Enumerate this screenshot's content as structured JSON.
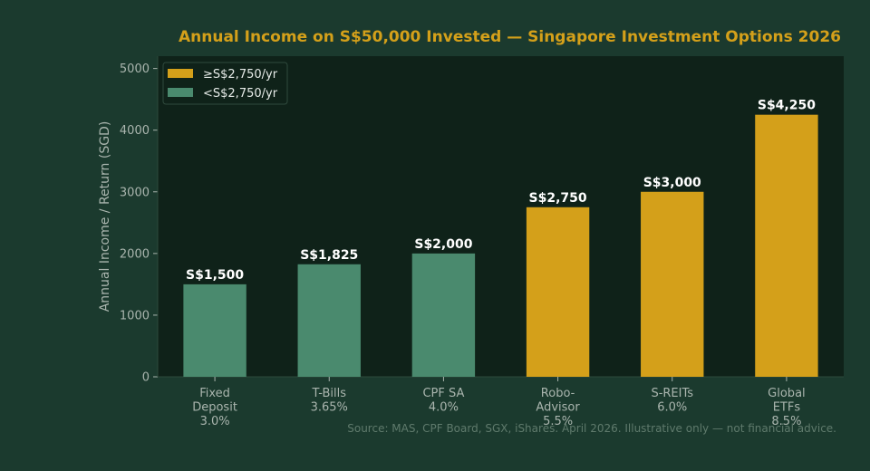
{
  "chart_data": {
    "type": "bar",
    "title": "Annual Income on S$50,000 Invested — Singapore Investment Options 2026",
    "ylabel": "Annual Income / Return (SGD)",
    "xlabel": "",
    "ylim": [
      0,
      5200
    ],
    "yticks": [
      "0",
      "1000",
      "2000",
      "3000",
      "4000",
      "5000"
    ],
    "grid": false,
    "legend_position": "top-left",
    "categories": [
      [
        "Fixed",
        "Deposit",
        "3.0%"
      ],
      [
        "T-Bills",
        "3.65%"
      ],
      [
        "CPF SA",
        "4.0%"
      ],
      [
        "Robo-",
        "Advisor",
        "5.5%"
      ],
      [
        "S-REITs",
        "6.0%"
      ],
      [
        "Global",
        "ETFs",
        "8.5%"
      ]
    ],
    "values": [
      1500,
      1825,
      2000,
      2750,
      3000,
      4250
    ],
    "value_labels": [
      "S$1,500",
      "S$1,825",
      "S$2,000",
      "S$2,750",
      "S$3,000",
      "S$4,250"
    ],
    "threshold": 2750,
    "legend": [
      {
        "label": "≥S$2,750/yr",
        "color": "#d4a01a"
      },
      {
        "label": "<S$2,750/yr",
        "color": "#4a8a6e"
      }
    ],
    "source": "Source: MAS, CPF Board, SGX, iShares. April 2026. Illustrative only — not financial advice."
  },
  "colors": {
    "page_background": "#1b3a2e",
    "plot_background": "#0f2219",
    "title": "#d4a01a",
    "high_bar": "#d4a01a",
    "low_bar": "#4a8a6e"
  }
}
